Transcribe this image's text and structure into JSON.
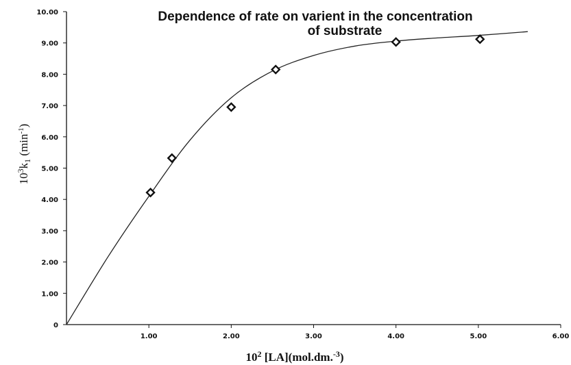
{
  "chart_data": {
    "type": "scatter",
    "title_lines": [
      "Dependence of rate on varient in the concentration",
      "of substrate"
    ],
    "xlabel": {
      "base": "10",
      "exp": "2",
      "text": " [LA](mol.dm.",
      "exp2": "-3",
      "end": ")"
    },
    "ylabel": {
      "base": "10",
      "exp": "3",
      "var": "k",
      "sub": "1",
      "text": " (min",
      "exp2": "-1",
      "end": ")"
    },
    "xlim": [
      0,
      6
    ],
    "ylim": [
      0,
      10
    ],
    "x_tick_labels": [
      "1.00",
      "2.00",
      "3.00",
      "4.00",
      "5.00",
      "6.00"
    ],
    "y_tick_labels": [
      "0",
      "1.00",
      "2.00",
      "3.00",
      "4.00",
      "5.00",
      "6.00",
      "7.00",
      "8.00",
      "9.00",
      "10.00"
    ],
    "grid": false,
    "legend": "none",
    "points": [
      {
        "x": 1.02,
        "y": 4.22
      },
      {
        "x": 1.28,
        "y": 5.32
      },
      {
        "x": 2.0,
        "y": 6.95
      },
      {
        "x": 2.54,
        "y": 8.15
      },
      {
        "x": 4.0,
        "y": 9.03
      },
      {
        "x": 5.02,
        "y": 9.12
      }
    ],
    "fit_curve": [
      {
        "x": 0,
        "y": 0
      },
      {
        "x": 0.5,
        "y": 2.15
      },
      {
        "x": 1.0,
        "y": 4.1
      },
      {
        "x": 1.5,
        "y": 5.9
      },
      {
        "x": 2.0,
        "y": 7.25
      },
      {
        "x": 2.5,
        "y": 8.1
      },
      {
        "x": 3.0,
        "y": 8.6
      },
      {
        "x": 3.5,
        "y": 8.9
      },
      {
        "x": 4.0,
        "y": 9.06
      },
      {
        "x": 4.5,
        "y": 9.16
      },
      {
        "x": 5.0,
        "y": 9.24
      },
      {
        "x": 5.6,
        "y": 9.36
      }
    ],
    "colors": {
      "axis": "#111111",
      "marker": "#111111",
      "curve": "#222222"
    }
  }
}
